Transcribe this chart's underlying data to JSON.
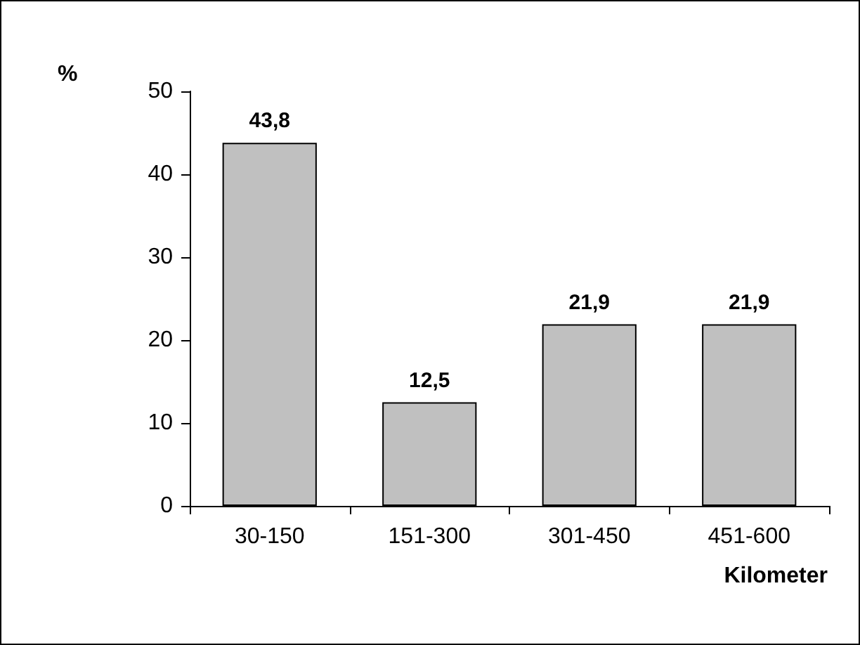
{
  "chart_data": {
    "type": "bar",
    "ylabel": "%",
    "xlabel": "Kilometer",
    "categories": [
      "30-150",
      "151-300",
      "301-450",
      "451-600"
    ],
    "values": [
      43.8,
      12.5,
      21.9,
      21.9
    ],
    "value_labels": [
      "43,8",
      "12,5",
      "21,9",
      "21,9"
    ],
    "color": "#c0c0c0",
    "ylim": [
      0,
      50
    ],
    "yticks": [
      0,
      10,
      20,
      30,
      40,
      50
    ],
    "grid": false
  }
}
